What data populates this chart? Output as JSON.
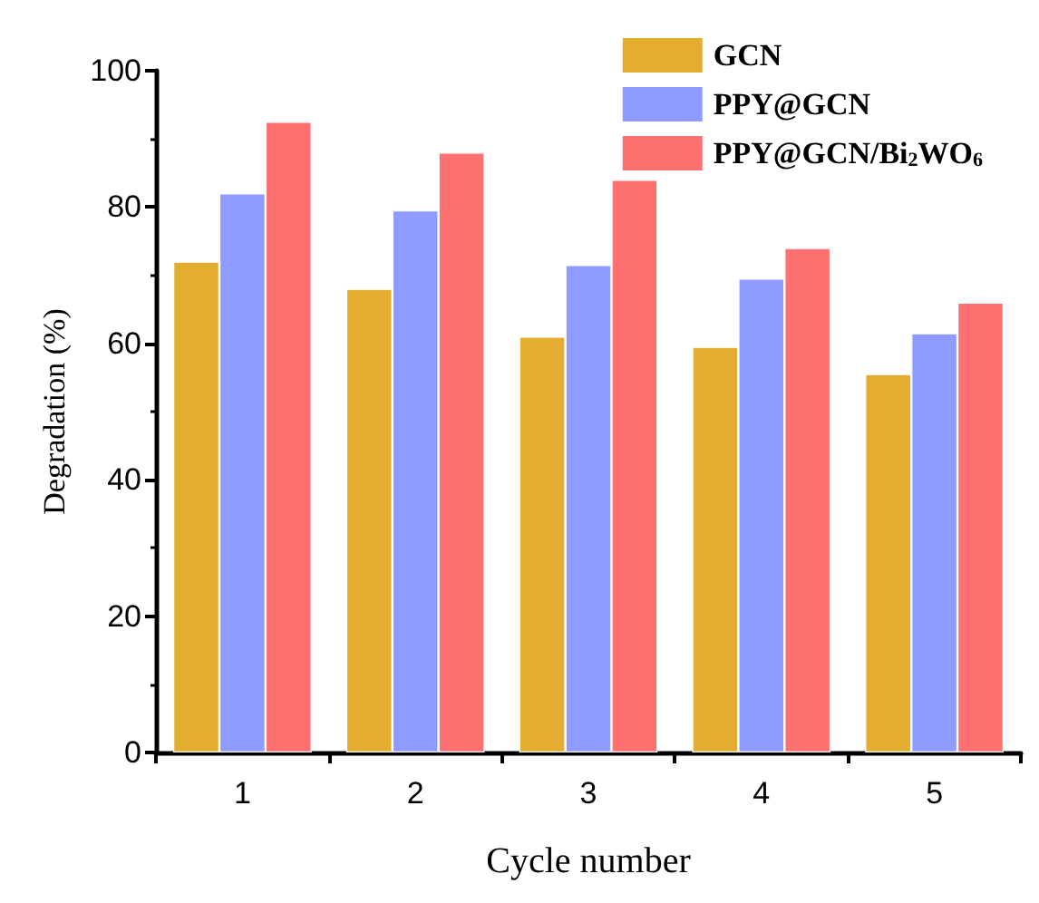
{
  "chart_data": {
    "type": "bar",
    "xlabel": "Cycle number",
    "ylabel": "Degradation (%)",
    "categories": [
      "1",
      "2",
      "3",
      "4",
      "5"
    ],
    "series": [
      {
        "name": "GCN",
        "color": "#e3ae30",
        "values": [
          72,
          68,
          61,
          59.5,
          55.5
        ]
      },
      {
        "name": "PPY@GCN",
        "color": "#8f9bff",
        "values": [
          82,
          79.5,
          71.5,
          69.5,
          61.5
        ]
      },
      {
        "name": "PPY@GCN/Bi$_{2}$WO$_{6}$",
        "color": "#ff7070",
        "values": [
          92.5,
          88,
          84,
          74,
          66
        ]
      }
    ],
    "ylim": [
      0,
      100
    ],
    "yticks": [
      0,
      20,
      40,
      60,
      80,
      100
    ],
    "grid": false,
    "legend": "top right"
  }
}
